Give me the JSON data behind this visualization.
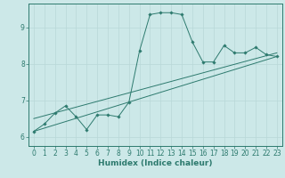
{
  "xlabel": "Humidex (Indice chaleur)",
  "bg_color": "#cce8e8",
  "line_color": "#2d7a6e",
  "grid_color": "#b8d8d8",
  "xlim": [
    -0.5,
    23.5
  ],
  "ylim": [
    5.75,
    9.65
  ],
  "xticks": [
    0,
    1,
    2,
    3,
    4,
    5,
    6,
    7,
    8,
    9,
    10,
    11,
    12,
    13,
    14,
    15,
    16,
    17,
    18,
    19,
    20,
    21,
    22,
    23
  ],
  "yticks": [
    6,
    7,
    8,
    9
  ],
  "line1_x": [
    0,
    1,
    2,
    3,
    4,
    5,
    6,
    7,
    8,
    9,
    10,
    11,
    12,
    13,
    14,
    15,
    16,
    17,
    18,
    19,
    20,
    21,
    22,
    23
  ],
  "line1_y": [
    6.15,
    6.35,
    6.65,
    6.85,
    6.55,
    6.2,
    6.6,
    6.6,
    6.55,
    6.95,
    8.35,
    9.35,
    9.4,
    9.4,
    9.35,
    8.6,
    8.05,
    8.05,
    8.5,
    8.3,
    8.3,
    8.45,
    8.25,
    8.2
  ],
  "line2_x": [
    0,
    23
  ],
  "line2_y": [
    6.15,
    8.2
  ],
  "line3_x": [
    0,
    23
  ],
  "line3_y": [
    6.5,
    8.3
  ],
  "tick_fontsize": 5.5,
  "xlabel_fontsize": 6.5,
  "xlabel_fontweight": "bold"
}
